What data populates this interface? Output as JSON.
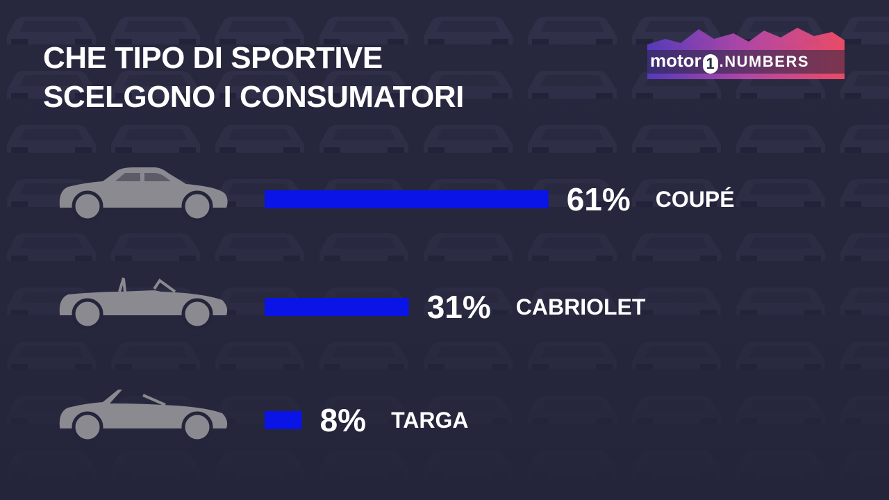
{
  "header": {
    "title_line1": "CHE TIPO DI SPORTIVE",
    "title_line2": "SCELGONO I CONSUMATORI"
  },
  "logo": {
    "brand": "motor",
    "one": "1",
    "suffix": ".NUMBERS"
  },
  "colors": {
    "bar": "#0a14e6",
    "text": "#ffffff",
    "icon": "#8a8a90",
    "background": "#24243a"
  },
  "chart_data": {
    "type": "bar",
    "orientation": "horizontal",
    "categories": [
      "COUPÉ",
      "CABRIOLET",
      "TARGA"
    ],
    "values": [
      61,
      31,
      8
    ],
    "value_labels": [
      "61%",
      "31%",
      "8%"
    ],
    "icons": [
      "coupe-car-icon",
      "cabriolet-car-icon",
      "targa-car-icon"
    ],
    "unit": "%",
    "title": "CHE TIPO DI SPORTIVE SCELGONO I CONSUMATORI",
    "grid": false
  }
}
